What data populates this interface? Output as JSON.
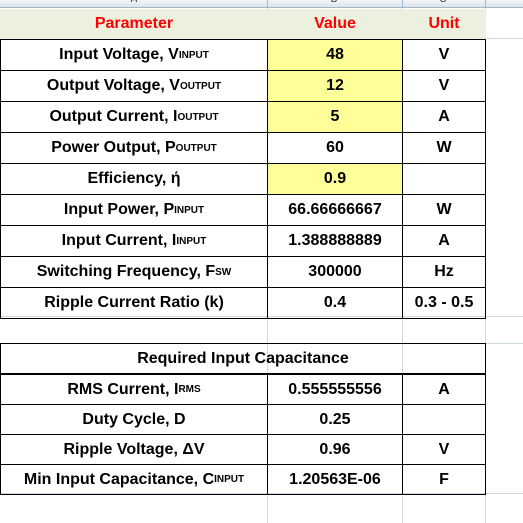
{
  "sheet": {
    "columns": [
      "A",
      "B",
      "C"
    ]
  },
  "table1": {
    "headers": {
      "parameter": "Parameter",
      "value": "Value",
      "unit": "Unit"
    },
    "rows": [
      {
        "label": "Input Voltage, V",
        "sub": "INPUT",
        "value": "48",
        "unit": "V",
        "highlight": true
      },
      {
        "label": "Output Voltage, V",
        "sub": "OUTPUT",
        "value": "12",
        "unit": "V",
        "highlight": true
      },
      {
        "label": "Output Current, I",
        "sub": "OUTPUT",
        "value": "5",
        "unit": "A",
        "highlight": true
      },
      {
        "label": "Power Output, P",
        "sub": "OUTPUT",
        "value": "60",
        "unit": "W",
        "highlight": false
      },
      {
        "label": "Efficiency, ή",
        "sub": "",
        "value": "0.9",
        "unit": "",
        "highlight": true
      },
      {
        "label": "Input Power, P",
        "sub": "INPUT",
        "value": "66.66666667",
        "unit": "W",
        "highlight": false
      },
      {
        "label": "Input Current, I",
        "sub": "INPUT",
        "value": "1.388888889",
        "unit": "A",
        "highlight": false
      },
      {
        "label": "Switching Frequency, F",
        "sub": "SW",
        "value": "300000",
        "unit": "Hz",
        "highlight": false
      },
      {
        "label": "Ripple Current Ratio (k)",
        "sub": "",
        "value": "0.4",
        "unit": "0.3 - 0.5",
        "highlight": false
      }
    ]
  },
  "table2": {
    "title": "Required Input Capacitance",
    "rows": [
      {
        "label": "RMS Current, I",
        "sub": "RMS",
        "value": "0.555555556",
        "unit": "A"
      },
      {
        "label": "Duty Cycle, D",
        "sub": "",
        "value": "0.25",
        "unit": ""
      },
      {
        "label": "Ripple Voltage, ΔV",
        "sub": "",
        "value": "0.96",
        "unit": "V"
      },
      {
        "label": "Min Input Capacitance, C",
        "sub": "INPUT",
        "value": "1.20563E-06",
        "unit": "F"
      }
    ]
  },
  "colors": {
    "header_fill": "#ebf1de",
    "header_text": "#ff0000",
    "input_fill": "#ffff99",
    "gridline": "#d0d7e5"
  }
}
